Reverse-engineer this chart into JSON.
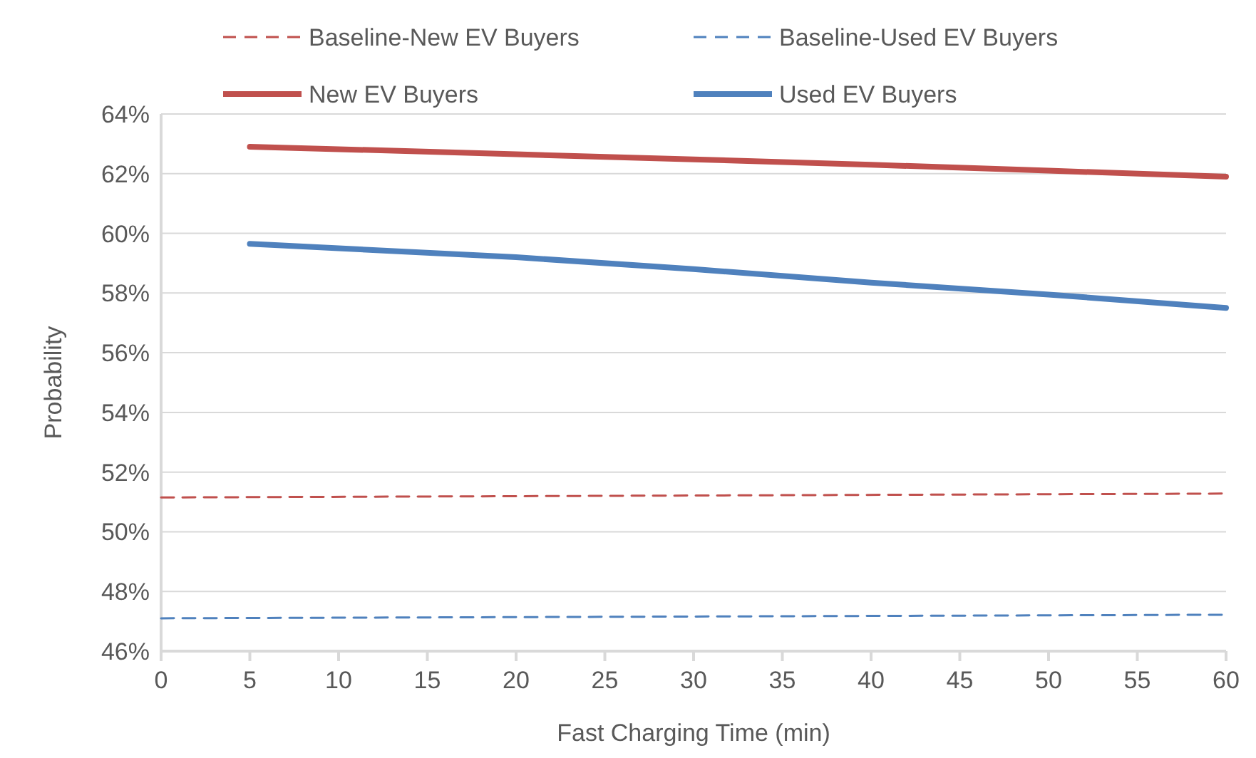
{
  "chart_data": {
    "type": "line",
    "xlabel": "Fast Charging Time (min)",
    "ylabel": "Probability",
    "xlim": [
      0,
      60
    ],
    "xticks": [
      0,
      5,
      10,
      15,
      20,
      25,
      30,
      35,
      40,
      45,
      50,
      55,
      60
    ],
    "ylim": [
      46,
      64
    ],
    "yticks": [
      {
        "value": 46,
        "label": "46%"
      },
      {
        "value": 48,
        "label": "48%"
      },
      {
        "value": 50,
        "label": "50%"
      },
      {
        "value": 52,
        "label": "52%"
      },
      {
        "value": 54,
        "label": "54%"
      },
      {
        "value": 56,
        "label": "56%"
      },
      {
        "value": 58,
        "label": "58%"
      },
      {
        "value": 60,
        "label": "60%"
      },
      {
        "value": 62,
        "label": "62%"
      },
      {
        "value": 64,
        "label": "64%"
      }
    ],
    "grid": "y",
    "legend": "top",
    "marker": "none",
    "series": [
      {
        "name": "Baseline-New EV Buyers",
        "color": "#c0504d",
        "line_style": "dashed",
        "x": [
          0,
          60
        ],
        "values": [
          51.15,
          51.28
        ]
      },
      {
        "name": "Baseline-Used EV Buyers",
        "color": "#4f81bd",
        "line_style": "dashed",
        "x": [
          0,
          60
        ],
        "values": [
          47.1,
          47.22
        ]
      },
      {
        "name": "New EV Buyers",
        "color": "#c0504d",
        "line_style": "solid",
        "x": [
          5,
          10,
          20,
          30,
          40,
          50,
          60
        ],
        "values": [
          62.9,
          62.82,
          62.65,
          62.48,
          62.3,
          62.1,
          61.9
        ]
      },
      {
        "name": "Used EV Buyers",
        "color": "#4f81bd",
        "line_style": "solid",
        "x": [
          5,
          10,
          20,
          30,
          40,
          50,
          60
        ],
        "values": [
          59.65,
          59.5,
          59.2,
          58.8,
          58.35,
          57.95,
          57.5
        ]
      }
    ]
  }
}
